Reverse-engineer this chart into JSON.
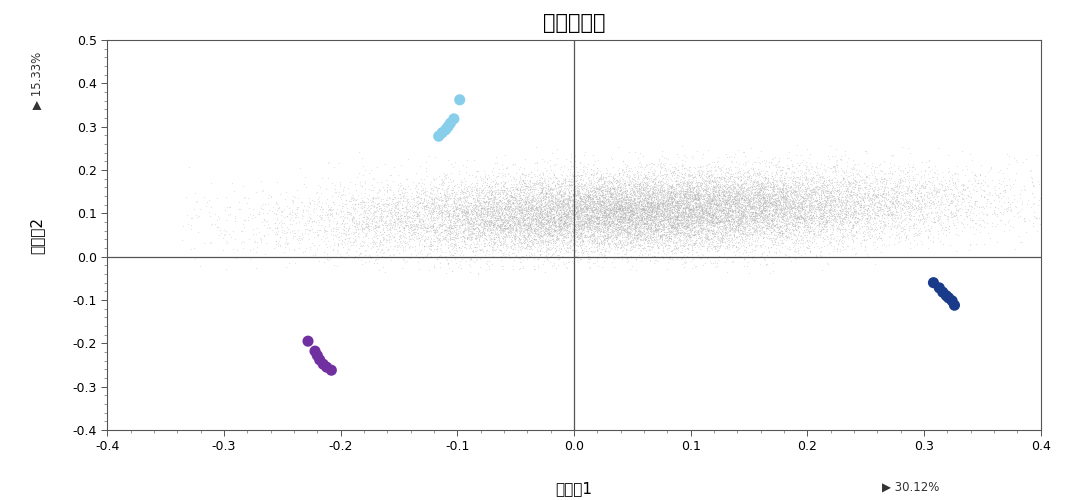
{
  "title": "主成分分析",
  "xlabel": "主成分 1",
  "ylabel": "主成分 2",
  "xlabel_pct": "▶ 30.12%",
  "ylabel_pct": "▶ 15.33%",
  "xlim": [
    -0.4,
    0.4
  ],
  "ylim": [
    -0.4,
    0.5
  ],
  "xticks": [
    -0.4,
    -0.3,
    -0.2,
    -0.1,
    0.0,
    0.1,
    0.2,
    0.3,
    0.4
  ],
  "yticks": [
    -0.4,
    -0.3,
    -0.2,
    -0.1,
    0.0,
    0.1,
    0.2,
    0.3,
    0.4,
    0.5
  ],
  "background_color": "#ffffff",
  "plot_bg_color": "#ffffff",
  "gray_cloud_color": "#b0b0b0",
  "analyte_color": "#7030a0",
  "blank_color": "#87CEEB",
  "qc_color": "#1a3a8a",
  "analyte_points": [
    [
      -0.228,
      -0.195
    ],
    [
      -0.222,
      -0.218
    ],
    [
      -0.22,
      -0.228
    ],
    [
      -0.218,
      -0.238
    ],
    [
      -0.215,
      -0.248
    ],
    [
      -0.212,
      -0.255
    ],
    [
      -0.208,
      -0.262
    ]
  ],
  "blank_points": [
    [
      -0.098,
      0.362
    ],
    [
      -0.103,
      0.318
    ],
    [
      -0.106,
      0.308
    ],
    [
      -0.108,
      0.3
    ],
    [
      -0.11,
      0.293
    ],
    [
      -0.113,
      0.286
    ],
    [
      -0.116,
      0.278
    ]
  ],
  "qc_points": [
    [
      0.308,
      -0.06
    ],
    [
      0.313,
      -0.072
    ],
    [
      0.316,
      -0.082
    ],
    [
      0.319,
      -0.09
    ],
    [
      0.321,
      -0.095
    ],
    [
      0.324,
      -0.102
    ],
    [
      0.326,
      -0.112
    ]
  ],
  "gray_seed": 99,
  "gray_n_points": 25000,
  "title_fontsize": 15,
  "axis_label_fontsize": 11,
  "tick_fontsize": 9,
  "marker_size": 8
}
